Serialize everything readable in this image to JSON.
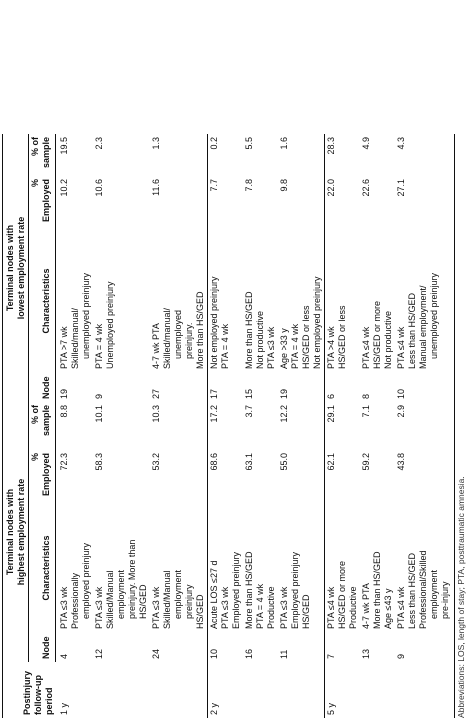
{
  "headers": {
    "period": [
      "Postinjury",
      "follow-up",
      "period"
    ],
    "group_high": [
      "Terminal nodes with",
      "highest employment rate"
    ],
    "group_low": [
      "Terminal nodes with",
      "lowest employment rate"
    ],
    "node": "Node",
    "characteristics": "Characteristics",
    "pct_employed": [
      "%",
      "Employed"
    ],
    "pct_sample": [
      "% of",
      "sample"
    ]
  },
  "groups": [
    {
      "period": "1 y",
      "rows": [
        {
          "h_node": "4",
          "h_char": [
            "PTA ≤3 wk",
            "Professionally",
            "   employed preinjury"
          ],
          "h_emp": "72.3",
          "h_samp": "8.8",
          "l_node": "19",
          "l_char": [
            "PTA >7 wk",
            "Skilled/manual/",
            "   unemployed preinjury"
          ],
          "l_emp": "10.2",
          "l_samp": "19.5"
        },
        {
          "h_node": "12",
          "h_char": [
            "PTA ≤3 wk",
            "Skilled/Manual",
            "   employment",
            "   preinjury. More than",
            "   HS/GED"
          ],
          "h_emp": "58.3",
          "h_samp": "10.1",
          "l_node": "9",
          "l_char": [
            "PTA = 4 wk",
            "Unemployed preinjury"
          ],
          "l_emp": "10.6",
          "l_samp": "2.3"
        },
        {
          "h_node": "24",
          "h_char": [
            "PTA ≤3 wk",
            "Skilled/Manual",
            "   employment",
            "   preinjury",
            "HS/GED"
          ],
          "h_emp": "53.2",
          "h_samp": "10.3",
          "l_node": "27",
          "l_char": [
            "4-7 wk PTA",
            "Skilled/manual/",
            "   unemployed",
            "   preinjury.",
            "More than HS/GED"
          ],
          "l_emp": "11.6",
          "l_samp": "1.3"
        }
      ]
    },
    {
      "period": "2 y",
      "rows": [
        {
          "h_node": "10",
          "h_char": [
            "Acute LOS ≤27 d",
            "PTA ≤3 wk",
            "Employed preinjury"
          ],
          "h_emp": "68.6",
          "h_samp": "17.2",
          "l_node": "17",
          "l_char": [
            "Not employed preinjury",
            "PTA = 4 wk"
          ],
          "l_emp": "7.7",
          "l_samp": "0.2"
        },
        {
          "h_node": "16",
          "h_char": [
            "More than HS/GED",
            "PTA = 4 wk",
            "Productive"
          ],
          "h_emp": "63.1",
          "h_samp": "3.7",
          "l_node": "15",
          "l_char": [
            "More than HS/GED",
            "Not productive",
            "PTA ≤3 wk"
          ],
          "l_emp": "7.8",
          "l_samp": "5.5"
        },
        {
          "h_node": "11",
          "h_char": [
            "PTA ≤3 wk",
            "Employed preinjury",
            "HS/GED"
          ],
          "h_emp": "55.0",
          "h_samp": "12.2",
          "l_node": "19",
          "l_char": [
            "Age >33 y",
            "PTA = 4 wk",
            "HS/GED or less",
            "Not employed preinjury"
          ],
          "l_emp": "9.8",
          "l_samp": "1.6"
        }
      ]
    },
    {
      "period": "5 y",
      "rows": [
        {
          "h_node": "7",
          "h_char": [
            "PTA ≤4 wk",
            "HS/GED or more",
            "Productive"
          ],
          "h_emp": "62.1",
          "h_samp": "29.1",
          "l_node": "6",
          "l_char": [
            "PTA >4 wk",
            "HS/GED or less"
          ],
          "l_emp": "22.0",
          "l_samp": "28.3"
        },
        {
          "h_node": "13",
          "h_char": [
            "4-7 wk PTA",
            "More than HS/GED",
            "Age ≤43 y"
          ],
          "h_emp": "59.2",
          "h_samp": "7.1",
          "l_node": "8",
          "l_char": [
            "PTA ≤4 wk",
            "HS/GED or more",
            "Not productive"
          ],
          "l_emp": "22.6",
          "l_samp": "4.9"
        },
        {
          "h_node": "9",
          "h_char": [
            "PTA ≤4 wk",
            "Less than HS/GED",
            "Professional/Skilled",
            "   employment",
            "   pre-injury"
          ],
          "h_emp": "43.8",
          "h_samp": "2.9",
          "l_node": "10",
          "l_char": [
            "PTA ≤4 wk",
            "Less than HS/GED",
            "Manual employment/",
            "   unemployed preinjury"
          ],
          "l_emp": "27.1",
          "l_samp": "4.3"
        }
      ]
    }
  ],
  "footnote": "Abbreviations: LOS, length of stay; PTA, posttraumatic amnesia."
}
